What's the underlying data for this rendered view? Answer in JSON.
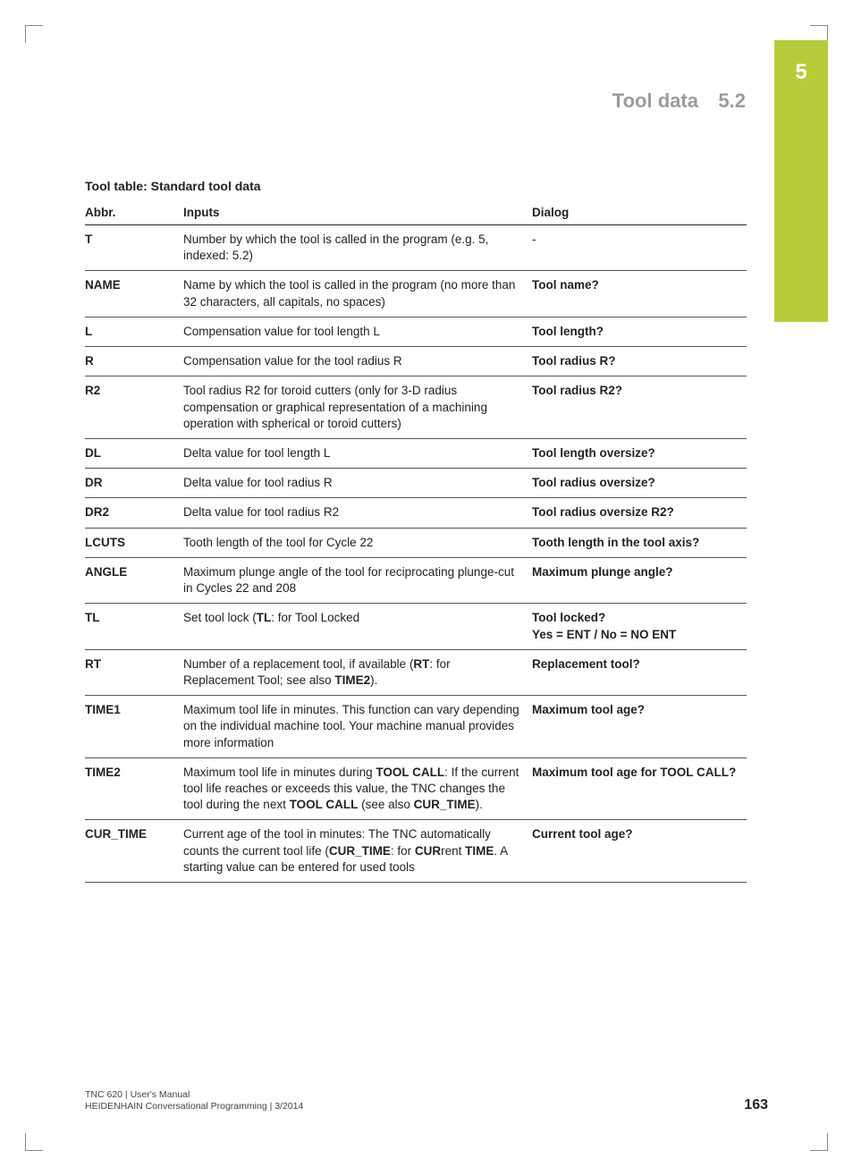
{
  "chapter_tab": "5",
  "header": {
    "title": "Tool data",
    "section": "5.2"
  },
  "caption": "Tool table: Standard tool data",
  "table": {
    "columns": [
      "Abbr.",
      "Inputs",
      "Dialog"
    ],
    "rows": [
      {
        "abbr": "T",
        "inputs": "Number by which the tool is called in the program (e.g. 5, indexed: 5.2)",
        "dialog": "-",
        "dialog_plain": true
      },
      {
        "abbr": "NAME",
        "inputs": "Name by which the tool is called in the program (no more than 32  characters, all capitals, no spaces)",
        "dialog": "Tool name?"
      },
      {
        "abbr": "L",
        "inputs": "Compensation value for tool length L",
        "dialog": "Tool length?"
      },
      {
        "abbr": "R",
        "inputs": "Compensation value for the tool radius R",
        "dialog": "Tool radius R?"
      },
      {
        "abbr": "R2",
        "inputs": "Tool radius R2 for toroid cutters (only for 3-D radius compensation or graphical representation of a machining operation with spherical or toroid cutters)",
        "dialog": "Tool radius R2?"
      },
      {
        "abbr": "DL",
        "inputs": "Delta value for tool length L",
        "dialog": "Tool length oversize?"
      },
      {
        "abbr": "DR",
        "inputs": "Delta value for tool radius R",
        "dialog": "Tool radius oversize?"
      },
      {
        "abbr": "DR2",
        "inputs": "Delta value for tool radius R2",
        "dialog": "Tool radius oversize R2?"
      },
      {
        "abbr": "LCUTS",
        "inputs": "Tooth length of the tool for Cycle 22",
        "dialog": "Tooth length in the tool axis?"
      },
      {
        "abbr": "ANGLE",
        "inputs": "Maximum plunge angle of the tool for reciprocating plunge-cut in Cycles 22 and 208",
        "dialog": "Maximum plunge angle?"
      },
      {
        "abbr": "TL",
        "inputs_html": "Set tool lock (<b>TL</b>: for Tool Locked",
        "dialog_html": "Tool locked?<br>Yes = ENT / No = NO ENT"
      },
      {
        "abbr": "RT",
        "inputs_html": "Number of a replacement tool, if available (<b>RT</b>: for Replacement Tool; see also <b>TIME2</b>).",
        "dialog": "Replacement tool?"
      },
      {
        "abbr": "TIME1",
        "inputs": "Maximum tool life in minutes. This function can vary depending on the individual machine tool. Your machine manual provides more information",
        "dialog": "Maximum tool age?"
      },
      {
        "abbr": "TIME2",
        "inputs_html": "Maximum tool life in minutes during <b>TOOL CALL</b>: If the current tool life reaches or exceeds this value, the TNC changes the tool during the next <b>TOOL CALL</b> (see also <b>CUR_TIME</b>).",
        "dialog": "Maximum tool age for TOOL CALL?"
      },
      {
        "abbr": "CUR_TIME",
        "inputs_html": "Current age of the tool in minutes: The TNC automatically counts the current tool life (<b>CUR_TIME</b>: for <b>CUR</b>rent <b>TIME</b>. A starting value can be entered for used tools",
        "dialog": "Current tool age?"
      }
    ]
  },
  "footer": {
    "line1": "TNC 620 | User's Manual",
    "line2": "HEIDENHAIN Conversational Programming | 3/2014",
    "page": "163"
  }
}
